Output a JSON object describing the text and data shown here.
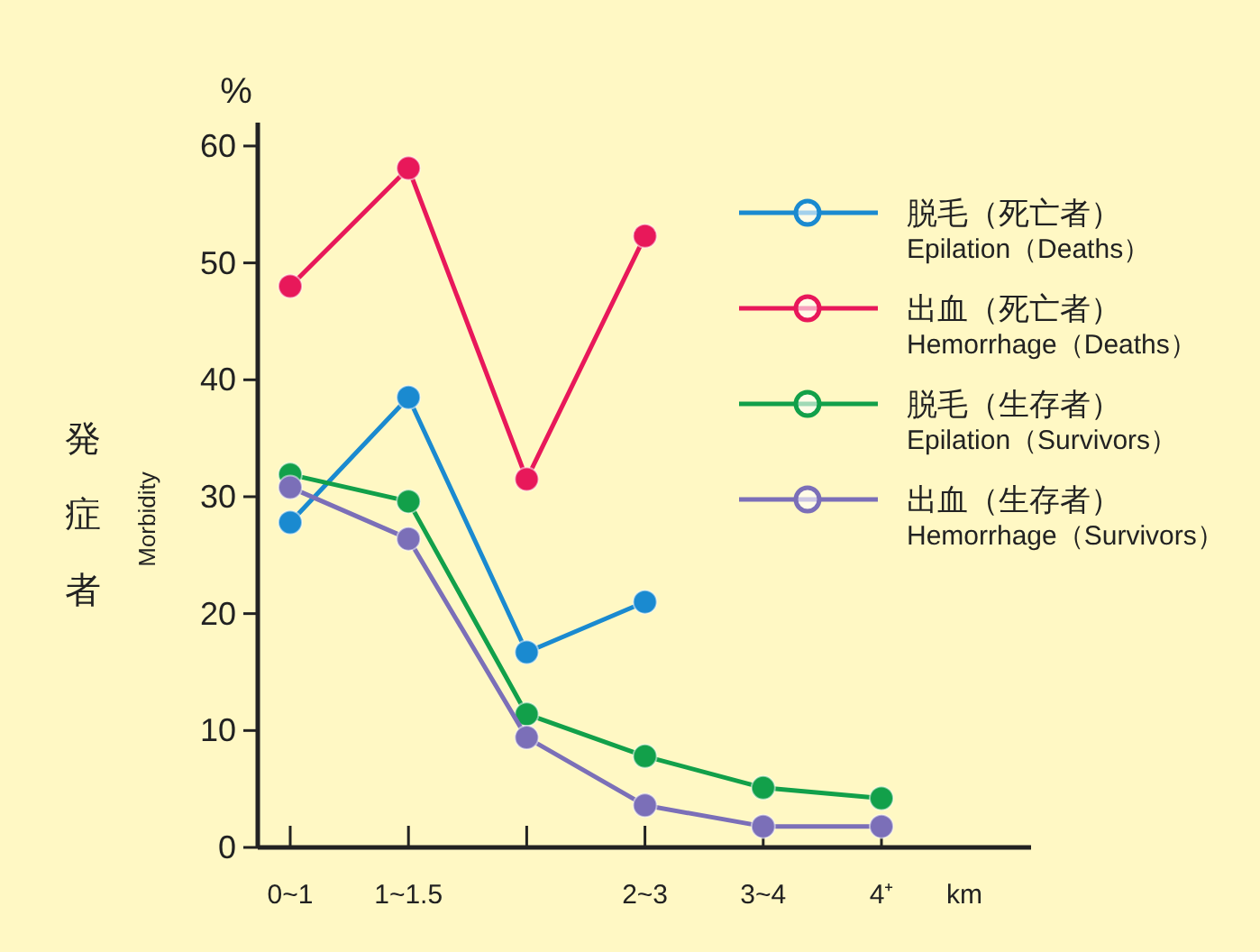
{
  "chart_data": {
    "type": "line",
    "categories": [
      "0~1",
      "1~1.5",
      null,
      "2~3",
      "3~4",
      "4⁺"
    ],
    "xlabel": "km",
    "ylabel": "発症者",
    "annotations": [
      "Morbidity",
      "%"
    ],
    "ylim": [
      0,
      62
    ],
    "yticks": [
      0,
      10,
      20,
      30,
      40,
      50,
      60
    ],
    "grid": false,
    "legend": "right",
    "marker": "circle",
    "line_style": "solid",
    "series": [
      {
        "name": "脱毛（死亡者）\nEpilation（Deaths）",
        "color": "#1a8ad0",
        "values": [
          27.8,
          38.5,
          16.7,
          21.0,
          null,
          null
        ]
      },
      {
        "name": "出血（死亡者）\nHemorrhage（Deaths）",
        "color": "#e8185a",
        "values": [
          48.0,
          58.1,
          31.5,
          52.3,
          null,
          null
        ]
      },
      {
        "name": "脱毛（生存者）\nEpilation（Survivors）",
        "color": "#12a04a",
        "values": [
          31.9,
          29.6,
          11.4,
          7.8,
          5.1,
          4.2
        ]
      },
      {
        "name": "出血（生存者）\nHemorrhage（Survivors）",
        "color": "#7b6fb8",
        "values": [
          30.8,
          26.4,
          9.4,
          3.6,
          1.8,
          1.8
        ]
      }
    ]
  }
}
